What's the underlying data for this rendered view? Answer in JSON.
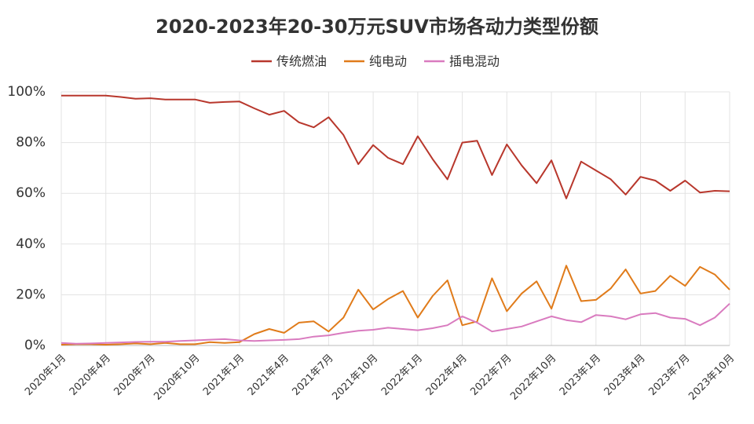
{
  "chart_data": {
    "type": "line",
    "title": "2020-2023年20-30万元SUV市场各动力类型份额",
    "categories": [
      "2020年1月",
      null,
      null,
      "2020年4月",
      null,
      null,
      "2020年7月",
      null,
      null,
      "2020年10月",
      null,
      null,
      "2021年1月",
      null,
      null,
      "2021年4月",
      null,
      null,
      "2021年7月",
      null,
      null,
      "2021年10月",
      null,
      null,
      "2022年1月",
      null,
      null,
      "2022年4月",
      null,
      null,
      "2022年7月",
      null,
      null,
      "2022年10月",
      null,
      null,
      "2023年1月",
      null,
      null,
      "2023年4月",
      null,
      null,
      "2023年7月",
      null,
      null,
      "2023年10月"
    ],
    "series": [
      {
        "name": "传统燃油",
        "color": "#b8372c",
        "values": [
          98.5,
          98.5,
          98.5,
          98.5,
          98,
          97.3,
          97.5,
          97,
          97,
          97,
          95.7,
          96,
          96.2,
          93.5,
          91,
          92.5,
          88,
          86,
          90,
          83,
          71.5,
          79,
          74,
          71.5,
          82.5,
          73.5,
          65.5,
          80,
          80.7,
          67.2,
          79.3,
          71,
          64,
          73,
          58,
          72.5,
          69,
          65.5,
          59.5,
          66.5,
          65,
          61,
          65,
          60.3,
          61,
          60.8
        ]
      },
      {
        "name": "纯电动",
        "color": "#e07b1a",
        "values": [
          0.3,
          0.5,
          0.5,
          0.3,
          0.5,
          0.8,
          0.5,
          1,
          0.5,
          0.5,
          1.3,
          1,
          1.3,
          4.5,
          6.5,
          5,
          9,
          9.5,
          5.5,
          11,
          22,
          14.2,
          18.3,
          21.5,
          11,
          19.5,
          25.7,
          8,
          9.5,
          26.5,
          13.5,
          20.5,
          25.3,
          14.5,
          31.5,
          17.5,
          18,
          22.5,
          30,
          20.5,
          21.5,
          27.5,
          23.5,
          31,
          28,
          22
        ]
      },
      {
        "name": "插电混动",
        "color": "#d97bbf",
        "values": [
          1,
          0.7,
          0.8,
          1,
          1.2,
          1.4,
          1.5,
          1.5,
          1.8,
          2,
          2.3,
          2.5,
          2,
          1.8,
          2,
          2.2,
          2.5,
          3.5,
          4,
          5,
          5.8,
          6.2,
          7,
          6.5,
          6,
          6.8,
          8,
          11.5,
          9,
          5.5,
          6.5,
          7.5,
          9.5,
          11.5,
          10,
          9.2,
          12,
          11.5,
          10.3,
          12.3,
          12.8,
          11,
          10.5,
          8,
          11,
          16.5
        ]
      }
    ],
    "ylim": [
      0,
      100
    ],
    "yticks": [
      {
        "value": 0,
        "label": "0%"
      },
      {
        "value": 20,
        "label": "20%"
      },
      {
        "value": 40,
        "label": "40%"
      },
      {
        "value": 60,
        "label": "60%"
      },
      {
        "value": 80,
        "label": "80%"
      },
      {
        "value": 100,
        "label": "100%"
      }
    ],
    "grid": true
  }
}
